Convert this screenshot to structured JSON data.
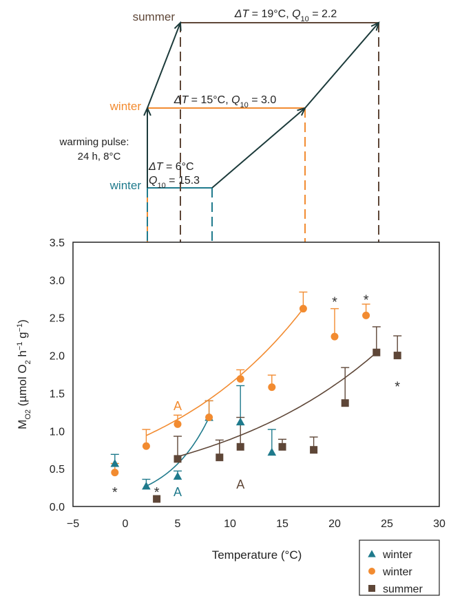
{
  "chart_data": {
    "type": "scatter",
    "xlabel": "Temperature (°C)",
    "ylabel": {
      "base": "M",
      "sub": "O2",
      "rest": " (µmol O",
      "sub2": "2",
      "rest2": " h",
      "sup1": "−1",
      "rest3": " g",
      "sup2": "−1",
      "rest4": ")"
    },
    "xlim": [
      -5,
      30
    ],
    "ylim": [
      0,
      3.5
    ],
    "xticks": [
      "−5",
      "0",
      "5",
      "10",
      "15",
      "20",
      "25",
      "30"
    ],
    "xtick_values": [
      -5,
      0,
      5,
      10,
      15,
      20,
      25,
      30
    ],
    "yticks": [
      "0.0",
      "0.5",
      "1.0",
      "1.5",
      "2.0",
      "2.5",
      "3.0",
      "3.5"
    ],
    "ytick_values": [
      0,
      0.5,
      1.0,
      1.5,
      2.0,
      2.5,
      3.0,
      3.5
    ],
    "grid": false,
    "legend_position": "bottom-right",
    "series": [
      {
        "name": "winter",
        "marker": "triangle",
        "color": "#1f7a8c",
        "x": [
          -1,
          2,
          5,
          8,
          11,
          14
        ],
        "y": [
          0.57,
          0.27,
          0.4,
          1.18,
          1.12,
          0.72
        ],
        "err": [
          0.12,
          0.09,
          0.07,
          0.22,
          0.48,
          0.3
        ],
        "fit": {
          "x": [
            2,
            8
          ],
          "y": [
            0.27,
            1.18
          ]
        }
      },
      {
        "name": "winter",
        "marker": "circle",
        "color": "#f28b30",
        "x": [
          -1,
          2,
          5,
          8,
          11,
          14,
          17,
          20,
          23
        ],
        "y": [
          0.45,
          0.8,
          1.09,
          1.18,
          1.69,
          1.58,
          2.62,
          2.25,
          2.53
        ],
        "err": [
          0.12,
          0.22,
          0.12,
          0.22,
          0.12,
          0.16,
          0.22,
          0.37,
          0.15
        ],
        "fit": {
          "x": [
            2,
            17
          ],
          "y": [
            0.94,
            2.62
          ]
        }
      },
      {
        "name": "summer",
        "marker": "square",
        "color": "#5e4637",
        "x": [
          3,
          5,
          9,
          11,
          15,
          18,
          21,
          24,
          26
        ],
        "y": [
          0.1,
          0.63,
          0.65,
          0.79,
          0.79,
          0.75,
          1.37,
          2.04,
          2.0
        ],
        "err": [
          0.0,
          0.3,
          0.23,
          0.39,
          0.1,
          0.17,
          0.47,
          0.34,
          0.26
        ],
        "fit": {
          "x": [
            5,
            24
          ],
          "y": [
            0.66,
            2.04
          ]
        }
      }
    ],
    "annotations": {
      "stars": [
        {
          "label": "*",
          "x": -1,
          "y": 0.2,
          "color": "#333333"
        },
        {
          "label": "*",
          "x": 3,
          "y": 0.2,
          "color": "#333333"
        },
        {
          "label": "*",
          "x": 20,
          "y": 2.72,
          "color": "#333333"
        },
        {
          "label": "*",
          "x": 23,
          "y": 2.75,
          "color": "#333333"
        },
        {
          "label": "*",
          "x": 26,
          "y": 1.6,
          "color": "#333333"
        }
      ],
      "letters": [
        {
          "label": "A",
          "x": 5,
          "y": 1.34,
          "color": "#f28b30"
        },
        {
          "label": "A",
          "x": 5,
          "y": 0.2,
          "color": "#1f7a8c"
        },
        {
          "label": "A",
          "x": 11,
          "y": 0.3,
          "color": "#5e4637"
        }
      ]
    },
    "diagram": {
      "summer_label": "summer",
      "winter_orange_label": "winter",
      "winter_teal_label": "winter",
      "pulse_line1": "warming pulse:",
      "pulse_line2": "24 h, 8°C",
      "summer_delta": {
        "dt": "ΔT",
        "eq": " = 19°C, ",
        "q": "Q",
        "qsub": "10",
        "val": " = 2.2"
      },
      "orange_delta": {
        "dt": "ΔT",
        "eq": " = 15°C, ",
        "q": "Q",
        "qsub": "10",
        "val": " = 3.0"
      },
      "teal_delta_line1": {
        "dt": "ΔT",
        "eq": " = 6°C"
      },
      "teal_delta_line2": {
        "q": "Q",
        "qsub": "10",
        "val": " = 15.3"
      }
    },
    "legend": [
      {
        "label": "winter",
        "marker": "triangle",
        "color": "#1f7a8c"
      },
      {
        "label": "winter",
        "marker": "circle",
        "color": "#f28b30"
      },
      {
        "label": "summer",
        "marker": "square",
        "color": "#5e4637"
      }
    ]
  }
}
